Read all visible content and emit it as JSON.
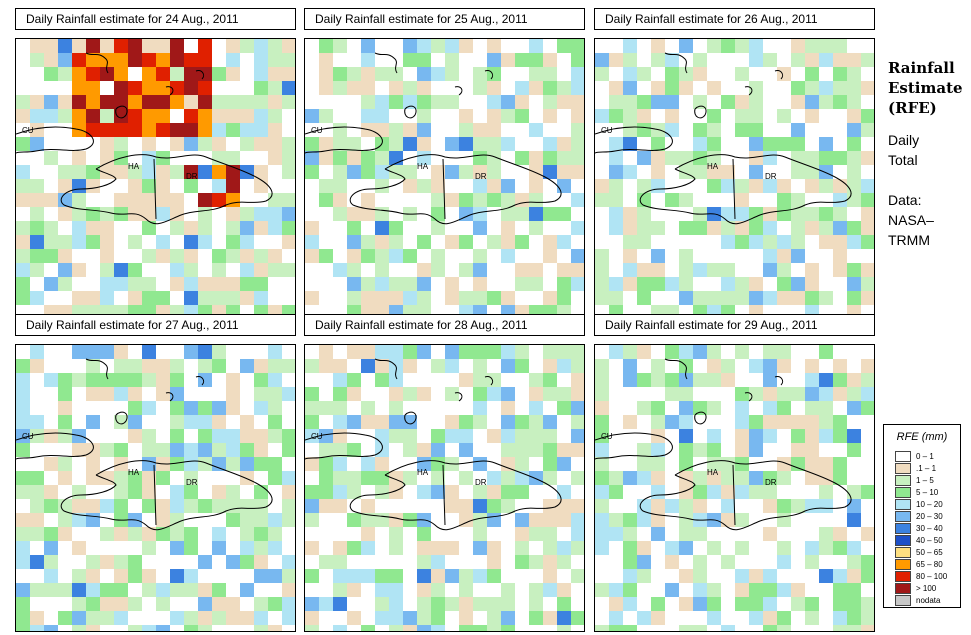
{
  "panels": [
    {
      "title": "Daily Rainfall estimate for  24 Aug., 2011",
      "intensity": 3,
      "heavy": true
    },
    {
      "title": "Daily Rainfall estimate for  25 Aug., 2011",
      "intensity": 2,
      "heavy": false
    },
    {
      "title": "Daily Rainfall estimate for  26 Aug., 2011",
      "intensity": 1,
      "heavy": false
    },
    {
      "title": "Daily Rainfall estimate for  27 Aug., 2011",
      "intensity": 1,
      "heavy": false
    },
    {
      "title": "Daily Rainfall estimate for  28 Aug., 2011",
      "intensity": 2,
      "heavy": false
    },
    {
      "title": "Daily Rainfall estimate for  29 Aug., 2011",
      "intensity": 1,
      "heavy": false
    }
  ],
  "map_labels": {
    "cu": "CU",
    "ha": "HA",
    "dr": "DR"
  },
  "side": {
    "title_line1": "Rainfall",
    "title_line2": "Estimate",
    "title_line3": "(RFE)",
    "daily": "Daily",
    "total": "Total",
    "data_label": "Data:",
    "source_line1": "NASA–",
    "source_line2": "TRMM"
  },
  "legend": {
    "title": "RFE (mm)",
    "items": [
      {
        "label": "0 – 1",
        "color": "#ffffff"
      },
      {
        "label": ".1 – 1",
        "color": "#f0dcc0"
      },
      {
        "label": "1 – 5",
        "color": "#c8f0c0"
      },
      {
        "label": "5 – 10",
        "color": "#90e890"
      },
      {
        "label": "10 – 20",
        "color": "#b0e4f4"
      },
      {
        "label": "20 – 30",
        "color": "#78b8f0"
      },
      {
        "label": "30 – 40",
        "color": "#3c82e0"
      },
      {
        "label": "40 – 50",
        "color": "#1e50c8"
      },
      {
        "label": "50 – 65",
        "color": "#ffe080"
      },
      {
        "label": "65 – 80",
        "color": "#ff9a00"
      },
      {
        "label": "80 – 100",
        "color": "#e02000"
      },
      {
        "label": "> 100",
        "color": "#a01818"
      },
      {
        "label": "nodata",
        "color": "#c8c8c8"
      }
    ]
  }
}
